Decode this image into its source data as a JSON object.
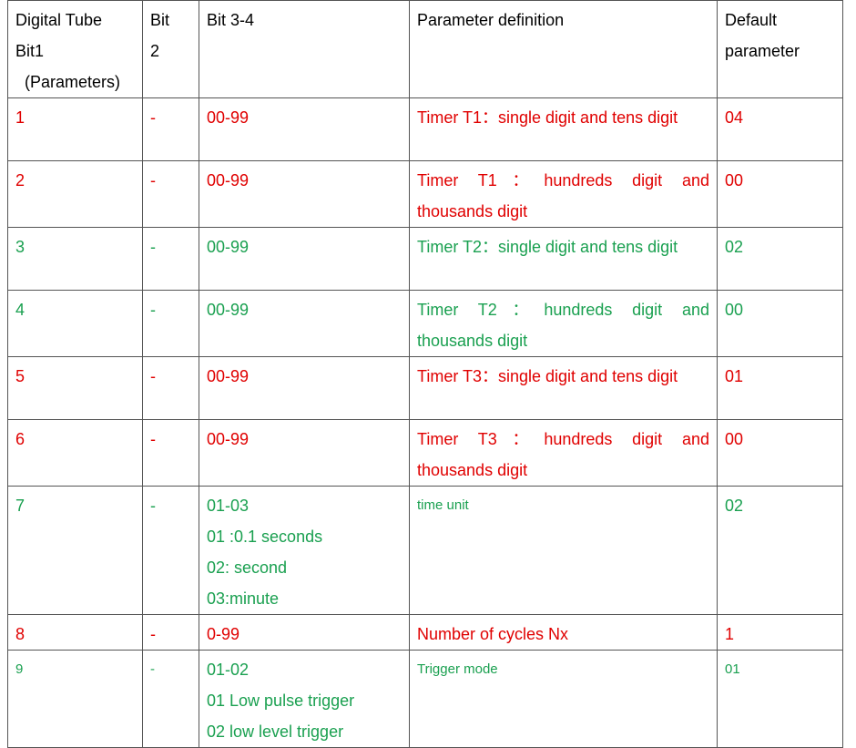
{
  "table": {
    "header": [
      [
        "Digital Tube",
        "Bit1",
        "(Parameters)"
      ],
      [
        "Bit",
        "2"
      ],
      [
        "Bit 3-4"
      ],
      [
        "Parameter definition"
      ],
      [
        "Default",
        "parameter"
      ]
    ],
    "rows": [
      {
        "color": "#e00000",
        "cells": [
          [
            "1"
          ],
          [
            "-"
          ],
          [
            "00-99"
          ],
          [
            "Timer T1：single digit and tens digit"
          ],
          [
            "04"
          ]
        ]
      },
      {
        "color": "#e00000",
        "cells": [
          [
            "2"
          ],
          [
            "-"
          ],
          [
            "00-99"
          ],
          [
            "Timer T1：hundreds digit and thousands digit"
          ],
          [
            "00"
          ]
        ]
      },
      {
        "color": "#1aa050",
        "cells": [
          [
            "3"
          ],
          [
            "-"
          ],
          [
            "00-99"
          ],
          [
            "Timer T2：single digit and tens digit"
          ],
          [
            "02"
          ]
        ]
      },
      {
        "color": "#1aa050",
        "cells": [
          [
            "4"
          ],
          [
            "-"
          ],
          [
            "00-99"
          ],
          [
            "Timer T2：hundreds digit and thousands digit"
          ],
          [
            "00"
          ]
        ]
      },
      {
        "color": "#e00000",
        "cells": [
          [
            "5"
          ],
          [
            "-"
          ],
          [
            "00-99"
          ],
          [
            "Timer T3：single digit and tens digit"
          ],
          [
            "01"
          ]
        ]
      },
      {
        "color": "#e00000",
        "cells": [
          [
            "6"
          ],
          [
            "-"
          ],
          [
            "00-99"
          ],
          [
            "Timer T3：hundreds digit and thousands digit"
          ],
          [
            "00"
          ]
        ]
      },
      {
        "color": "#1aa050",
        "cells": [
          [
            "7"
          ],
          [
            "-"
          ],
          [
            "01-03",
            "01 :0.1 seconds",
            "02: second",
            "03:minute"
          ],
          [
            "time unit"
          ],
          [
            "02"
          ]
        ]
      },
      {
        "color": "#e00000",
        "cells": [
          [
            "8"
          ],
          [
            "-"
          ],
          [
            "0-99"
          ],
          [
            "Number of cycles Nx"
          ],
          [
            "1"
          ]
        ]
      },
      {
        "color": "#1aa050",
        "cells": [
          [
            "9"
          ],
          [
            "-"
          ],
          [
            "01-02",
            "01 Low pulse trigger",
            "02 low level trigger"
          ],
          [
            "Trigger mode"
          ],
          [
            "01"
          ]
        ]
      }
    ]
  }
}
